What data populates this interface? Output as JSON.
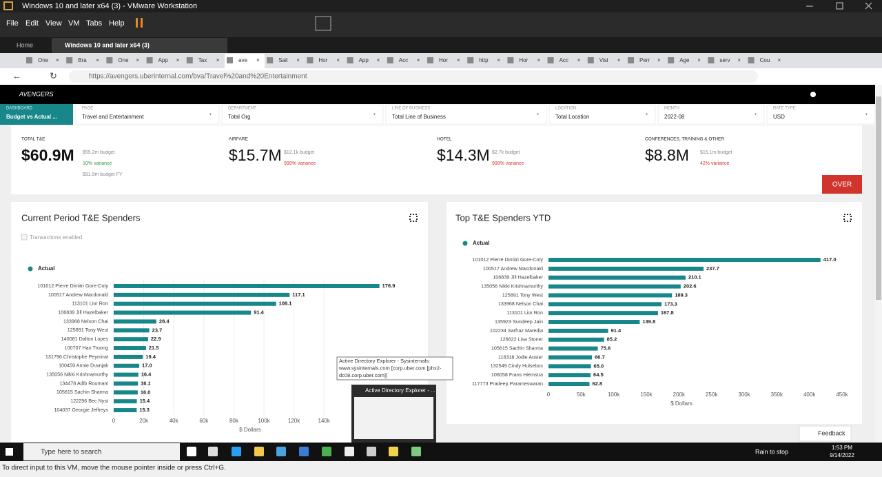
{
  "window": {
    "title": "Windows 10 and later x64 (3) - VMware Workstation"
  },
  "menu": [
    "File",
    "Edit",
    "View",
    "VM",
    "Tabs",
    "Help"
  ],
  "vm_tabs": [
    "Home",
    "Windows 10 and later x64 (3)"
  ],
  "browser_tabs": [
    "One",
    "Bra",
    "One",
    "App",
    "Tax",
    "ave",
    "Sail",
    "Hor",
    "App",
    "Acc",
    "Hor",
    "http",
    "Hor",
    "Acc",
    "Visi",
    "Perr",
    "Age",
    "serv",
    "Cou"
  ],
  "address": "https://avengers.uberinternal.com/bva/Travel%20and%20Entertainment",
  "app": {
    "brand": "AVENGERS"
  },
  "filters": [
    {
      "label": "DASHBOARD",
      "value": "Budget vs Actual ..."
    },
    {
      "label": "PAGE",
      "value": "Travel and Entertainment"
    },
    {
      "label": "DEPARTMENT",
      "value": "Total Org"
    },
    {
      "label": "LINE OF BUSINESS",
      "value": "Total Line of Business"
    },
    {
      "label": "LOCATION",
      "value": "Total Location"
    },
    {
      "label": "MONTH",
      "value": "2022-08"
    },
    {
      "label": "RATE TYPE",
      "value": "USD"
    }
  ],
  "kpis": [
    {
      "label": "TOTAL T&E",
      "value": "$60.9M",
      "notes": [
        {
          "text": "$55.2m budget",
          "color": "#888888"
        },
        {
          "text": "10% variance",
          "color": "#2e9a3e"
        },
        {
          "text": "$91.9m budget FY",
          "color": "#888888"
        }
      ]
    },
    {
      "label": "AIRFARE",
      "value": "$15.7M",
      "notes": [
        {
          "text": "$12.1k budget",
          "color": "#888888"
        },
        {
          "text": "999% variance",
          "color": "#d0342c"
        }
      ]
    },
    {
      "label": "HOTEL",
      "value": "$14.3M",
      "notes": [
        {
          "text": "$2.7k budget",
          "color": "#888888"
        },
        {
          "text": "999% variance",
          "color": "#d0342c"
        }
      ]
    },
    {
      "label": "CONFERENCES, TRAINING & OTHER",
      "value": "$8.8M",
      "notes": [
        {
          "text": "$15.1m budget",
          "color": "#888888"
        },
        {
          "text": "42% variance",
          "color": "#d0342c"
        }
      ]
    }
  ],
  "status_badge": "OVER",
  "charts": [
    {
      "type": "bar",
      "title": "Current Period T&E Spenders",
      "checkbox": "Transactions enabled",
      "xlabel": "$ Dollars",
      "grid": true,
      "series": [
        {
          "name": "Actual",
          "color": "#17878a",
          "values": [
            176900,
            117100,
            108100,
            91400,
            28400,
            23700,
            22900,
            21500,
            19400,
            17000,
            16400,
            16100,
            16000,
            15400,
            15300
          ],
          "value_labels": [
            "176.9",
            "117.1",
            "108.1",
            "91.4",
            "28.4",
            "23.7",
            "22.9",
            "21.5",
            "19.4",
            "17.0",
            "16.4",
            "16.1",
            "16.0",
            "15.4",
            "15.3"
          ]
        }
      ],
      "categories": [
        "101012 Pierre Dimitri Gore-Coty",
        "100517 Andrew Macdonald",
        "113101 Lior Ron",
        "106839 Jill Hazelbaker",
        "133968 Nelson Chai",
        "125891 Tony West",
        "140081 Dalton Lopes",
        "100707 Hao Truong",
        "131796 Christophe Peymirat",
        "100459 Annie Duvnjak",
        "135056 Nikki Krishnamurthy",
        "134478 Adib Roumani",
        "105615 Sachin Sharma",
        "122296 Bec Nyst",
        "104037 Georgie Jeffreys"
      ],
      "xlim": [
        0,
        200000
      ],
      "xticks": [
        0,
        {
          "value": 20000,
          "label": "20k"
        },
        {
          "value": 40000,
          "label": "40k"
        },
        {
          "value": 60000,
          "label": "60k"
        },
        {
          "value": 80000,
          "label": "80k"
        },
        {
          "value": 100000,
          "label": "100k"
        },
        {
          "value": 120000,
          "label": "120k"
        },
        {
          "value": 140000,
          "label": "140k"
        }
      ]
    },
    {
      "type": "bar",
      "title": "Top T&E Spenders YTD",
      "xlabel": "$ Dollars",
      "grid": false,
      "series": [
        {
          "name": "Actual",
          "color": "#17878a",
          "values": [
            417000,
            237700,
            210100,
            202600,
            189300,
            173300,
            167800,
            139800,
            91400,
            85200,
            75600,
            66700,
            65000,
            64500,
            62800
          ],
          "value_labels": [
            "417.0",
            "237.7",
            "210.1",
            "202.6",
            "189.3",
            "173.3",
            "167.8",
            "139.8",
            "91.4",
            "85.2",
            "75.6",
            "66.7",
            "65.0",
            "64.5",
            "62.8"
          ]
        }
      ],
      "categories": [
        "101012 Pierre Dimitri Gore-Coty",
        "100517 Andrew Macdonald",
        "106839 Jill Hazelbaker",
        "135056 Nikki Krishnamurthy",
        "125891 Tony West",
        "133968 Nelson Chai",
        "113101 Lior Ron",
        "135923 Sundeep Jain",
        "102234 Sarfraz Maredia",
        "126622 Lisa Stoner",
        "105615 Sachin Sharma",
        "116318 Jodie Auster",
        "132549 Cindy Hulsebos",
        "106058 Frans Hiemstra",
        "117773 Pradeep Parameswaran"
      ],
      "xlim": [
        0,
        450000
      ],
      "xticks": [
        0,
        {
          "value": 50000,
          "label": "50k"
        },
        {
          "value": 100000,
          "label": "100k"
        },
        {
          "value": 150000,
          "label": "150k"
        },
        {
          "value": 200000,
          "label": "200k"
        },
        {
          "value": 250000,
          "label": "250k"
        },
        {
          "value": 300000,
          "label": "300k"
        },
        {
          "value": 350000,
          "label": "350k"
        },
        {
          "value": 400000,
          "label": "400k"
        },
        {
          "value": 450000,
          "label": "450k"
        }
      ]
    }
  ],
  "tooltip": {
    "lines": [
      "Active Directory Explorer - Sysinternals:",
      "www.sysinternals.com [corp.uber.com [phx2-",
      "dc08.corp.uber.com]]"
    ]
  },
  "thumbnail": {
    "title": "Active Directory Explorer - ..."
  },
  "feedback": "Feedback",
  "taskbar": {
    "search": "Type here to search",
    "weather": "Rain to stop",
    "time": "1:53 PM",
    "date": "9/14/2022"
  },
  "status_bar": "To direct input to this VM, move the mouse pointer inside or press Ctrl+G."
}
